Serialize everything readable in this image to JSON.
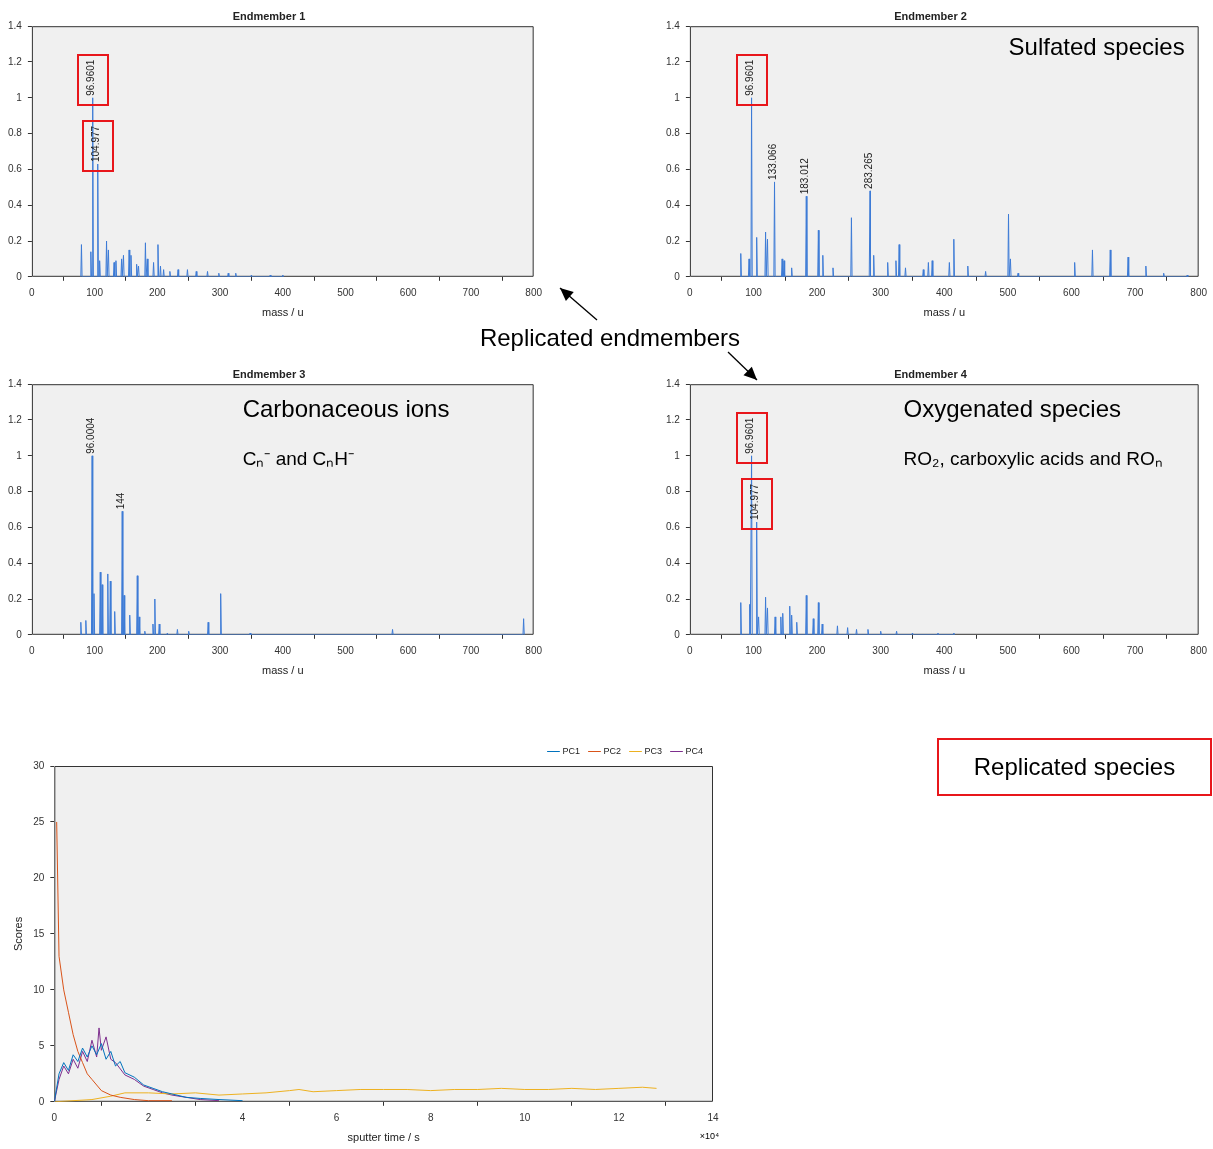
{
  "chart_data": [
    {
      "type": "line",
      "title": "Endmember 1",
      "xlabel": "mass / u",
      "color": "#3d7bd6",
      "grid": false,
      "marker": "none",
      "x": [
        78,
        79,
        80,
        93,
        94,
        95,
        96,
        96.9601,
        98,
        104,
        104.977,
        106,
        107,
        108,
        109,
        118,
        119,
        120,
        121,
        122,
        123,
        130,
        131,
        132,
        133,
        134,
        135,
        142,
        143,
        144,
        145,
        146,
        147,
        154,
        155,
        156,
        157,
        158,
        159,
        166,
        167,
        168,
        169,
        170,
        171,
        180,
        181,
        182,
        183,
        184,
        185,
        193,
        194,
        195,
        200,
        201,
        202,
        204,
        205,
        206,
        209,
        210,
        211,
        219,
        220,
        221,
        232,
        233,
        234,
        247,
        248,
        249,
        261,
        262,
        263,
        279,
        280,
        281,
        297,
        298,
        299,
        312,
        313,
        314,
        324,
        325,
        326,
        349,
        350,
        351,
        379,
        380,
        381,
        399,
        400,
        401
      ],
      "values": [
        0,
        0.18,
        0,
        0,
        0.14,
        0,
        0,
        1,
        0,
        0,
        0.63,
        0,
        0,
        0.09,
        0,
        0,
        0.2,
        0,
        0,
        0.15,
        0,
        0,
        0.08,
        0,
        0,
        0.09,
        0,
        0,
        0.1,
        0,
        0,
        0.12,
        0,
        0,
        0.15,
        0,
        0,
        0.12,
        0,
        0,
        0.07,
        0,
        0,
        0.06,
        0,
        0,
        0.19,
        0,
        0,
        0.1,
        0,
        0,
        0.08,
        0,
        0,
        0.18,
        0,
        0,
        0.06,
        0,
        0,
        0.04,
        0,
        0,
        0.03,
        0,
        0,
        0.04,
        0,
        0,
        0.04,
        0,
        0,
        0.03,
        0,
        0,
        0.03,
        0,
        0,
        0.02,
        0,
        0,
        0.02,
        0,
        0,
        0.02,
        0,
        0,
        0.01,
        0,
        0,
        0.01,
        0,
        0,
        0.01,
        0
      ],
      "xlim": [
        0,
        800
      ],
      "xticks": [
        0,
        100,
        200,
        300,
        400,
        500,
        600,
        700,
        800
      ],
      "ylim": [
        0,
        1.4
      ],
      "yticks": [
        0,
        0.2,
        0.4,
        0.6,
        0.8,
        1,
        1.2,
        1.4
      ],
      "annotations": [
        {
          "text": "96.9601",
          "x": 96.9601,
          "y": 1
        },
        {
          "text": "104.977",
          "x": 104.977,
          "y": 0.63
        }
      ]
    },
    {
      "type": "line",
      "title": "Endmember 2",
      "xlabel": "mass / u",
      "color": "#3d7bd6",
      "grid": false,
      "marker": "none",
      "x": [
        79,
        80,
        81,
        92,
        93,
        94,
        96,
        96.9601,
        98,
        104,
        105,
        106,
        118,
        119,
        120,
        121,
        122,
        123,
        132,
        133.066,
        134,
        144,
        145,
        146,
        147,
        148,
        149,
        159,
        160,
        161,
        182,
        183.012,
        184,
        201,
        202,
        203,
        208,
        209,
        210,
        224,
        225,
        226,
        253,
        254,
        255,
        282,
        283.265,
        284,
        288,
        289,
        290,
        310,
        311,
        312,
        323,
        324,
        325,
        328,
        329,
        330,
        338,
        339,
        340,
        366,
        367,
        368,
        374,
        375,
        376,
        380,
        381,
        382,
        407,
        408,
        409,
        414,
        415,
        416,
        436,
        437,
        438,
        464,
        465,
        466,
        500,
        501,
        502,
        503,
        504,
        505,
        515,
        516,
        517,
        604,
        605,
        606,
        632,
        633,
        634,
        660,
        661,
        662,
        688,
        689,
        690,
        716,
        717,
        718,
        744,
        745,
        746,
        781,
        782,
        783
      ],
      "values": [
        0,
        0.13,
        0,
        0,
        0.1,
        0,
        0,
        1,
        0,
        0,
        0.22,
        0,
        0,
        0.25,
        0,
        0,
        0.21,
        0,
        0,
        0.53,
        0,
        0,
        0.1,
        0,
        0,
        0.09,
        0,
        0,
        0.05,
        0,
        0,
        0.45,
        0,
        0,
        0.26,
        0,
        0,
        0.12,
        0,
        0,
        0.05,
        0,
        0,
        0.33,
        0,
        0,
        0.48,
        0,
        0,
        0.12,
        0,
        0,
        0.08,
        0,
        0,
        0.09,
        0,
        0,
        0.18,
        0,
        0,
        0.05,
        0,
        0,
        0.04,
        0,
        0,
        0.08,
        0,
        0,
        0.09,
        0,
        0,
        0.08,
        0,
        0,
        0.21,
        0,
        0,
        0.06,
        0,
        0,
        0.03,
        0,
        0,
        0.35,
        0,
        0,
        0.1,
        0,
        0,
        0.02,
        0,
        0,
        0.08,
        0,
        0,
        0.15,
        0,
        0,
        0.15,
        0,
        0,
        0.11,
        0,
        0,
        0.06,
        0,
        0,
        0.02,
        0,
        0,
        0.01,
        0
      ],
      "xlim": [
        0,
        800
      ],
      "xticks": [
        0,
        100,
        200,
        300,
        400,
        500,
        600,
        700,
        800
      ],
      "ylim": [
        0,
        1.4
      ],
      "yticks": [
        0,
        0.2,
        0.4,
        0.6,
        0.8,
        1,
        1.2,
        1.4
      ],
      "annotations": [
        "Sulfated species",
        {
          "text": "96.9601",
          "x": 96.9601,
          "y": 1
        },
        {
          "text": "133.066",
          "x": 133.066,
          "y": 0.53
        },
        {
          "text": "183.012",
          "x": 183.012,
          "y": 0.45
        },
        {
          "text": "283.265",
          "x": 283.265,
          "y": 0.48
        }
      ]
    },
    {
      "type": "line",
      "title": "Endmember 3",
      "xlabel": "mass / u",
      "color": "#3d7bd6",
      "grid": false,
      "marker": "none",
      "x": [
        77,
        78,
        79,
        85,
        86,
        87,
        95,
        96.0004,
        97,
        98,
        99,
        100,
        108,
        109,
        110,
        111,
        112,
        113,
        120,
        121,
        122,
        124,
        125,
        126,
        131,
        132,
        133,
        143,
        144,
        145,
        146,
        147,
        148,
        155,
        156,
        157,
        167,
        168,
        169,
        170,
        171,
        172,
        179,
        180,
        181,
        192,
        193,
        194,
        195,
        196,
        197,
        202,
        203,
        204,
        215,
        216,
        217,
        231,
        232,
        233,
        249,
        250,
        251,
        280,
        281,
        282,
        300,
        301,
        302,
        347,
        348,
        349,
        574,
        575,
        576,
        783,
        784,
        785
      ],
      "values": [
        0,
        0.07,
        0,
        0,
        0.08,
        0,
        0,
        1,
        0,
        0,
        0.23,
        0,
        0,
        0.35,
        0,
        0,
        0.28,
        0,
        0,
        0.34,
        0,
        0,
        0.3,
        0,
        0,
        0.13,
        0,
        0,
        0.69,
        0,
        0,
        0.22,
        0,
        0,
        0.11,
        0,
        0,
        0.33,
        0,
        0,
        0.1,
        0,
        0,
        0.02,
        0,
        0,
        0.06,
        0,
        0,
        0.2,
        0,
        0,
        0.06,
        0,
        0,
        0.01,
        0,
        0,
        0.03,
        0,
        0,
        0.02,
        0,
        0,
        0.07,
        0,
        0,
        0.23,
        0,
        0,
        0.01,
        0,
        0,
        0.03,
        0,
        0,
        0.09,
        0
      ],
      "xlim": [
        0,
        800
      ],
      "xticks": [
        0,
        100,
        200,
        300,
        400,
        500,
        600,
        700,
        800
      ],
      "ylim": [
        0,
        1.4
      ],
      "yticks": [
        0,
        0.2,
        0.4,
        0.6,
        0.8,
        1,
        1.2,
        1.4
      ],
      "annotations": [
        "Carbonaceous ions",
        "Cₙ⁻ and CₙH⁻",
        {
          "text": "96.0004",
          "x": 96.0004,
          "y": 1
        },
        {
          "text": "144",
          "x": 144,
          "y": 0.69
        }
      ]
    },
    {
      "type": "line",
      "title": "Endmember 4",
      "xlabel": "mass / u",
      "color": "#3d7bd6",
      "grid": false,
      "marker": "none",
      "x": [
        79,
        80,
        81,
        93,
        94,
        95,
        96,
        96.9601,
        98,
        104,
        104.977,
        106,
        107,
        108,
        109,
        118,
        119,
        120,
        121,
        122,
        123,
        133,
        134,
        135,
        142,
        143,
        144,
        145,
        146,
        147,
        156,
        157,
        158,
        159,
        160,
        161,
        167,
        168,
        169,
        182,
        183,
        184,
        193,
        194,
        195,
        201,
        202,
        203,
        207,
        208,
        209,
        231,
        232,
        233,
        247,
        248,
        249,
        261,
        262,
        263,
        279,
        280,
        281,
        299,
        300,
        301,
        324,
        325,
        326,
        349,
        350,
        351,
        389,
        390,
        391,
        414,
        415,
        416
      ],
      "values": [
        0,
        0.18,
        0,
        0,
        0.17,
        0,
        0,
        1,
        0,
        0,
        0.63,
        0,
        0,
        0.1,
        0,
        0,
        0.21,
        0,
        0,
        0.15,
        0,
        0,
        0.1,
        0,
        0,
        0.1,
        0,
        0,
        0.12,
        0,
        0,
        0.16,
        0,
        0,
        0.11,
        0,
        0,
        0.07,
        0,
        0,
        0.22,
        0,
        0,
        0.09,
        0,
        0,
        0.18,
        0,
        0,
        0.06,
        0,
        0,
        0.05,
        0,
        0,
        0.04,
        0,
        0,
        0.03,
        0,
        0,
        0.03,
        0,
        0,
        0.02,
        0,
        0,
        0.02,
        0,
        0,
        0.01,
        0,
        0,
        0.01,
        0,
        0,
        0.01,
        0
      ],
      "xlim": [
        0,
        800
      ],
      "xticks": [
        0,
        100,
        200,
        300,
        400,
        500,
        600,
        700,
        800
      ],
      "ylim": [
        0,
        1.4
      ],
      "yticks": [
        0,
        0.2,
        0.4,
        0.6,
        0.8,
        1,
        1.2,
        1.4
      ],
      "annotations": [
        "Oxygenated species",
        "RO₂, carboxylic acids and ROₙ",
        {
          "text": "96.9601",
          "x": 96.9601,
          "y": 1
        },
        {
          "text": "104.977",
          "x": 104.977,
          "y": 0.63
        }
      ]
    },
    {
      "type": "line",
      "xlabel": "sputter time / s",
      "ylabel": "Scores",
      "grid": false,
      "legend": "top right",
      "marker": "none",
      "xlim": [
        0,
        14
      ],
      "xticks": [
        0,
        2,
        4,
        6,
        8,
        10,
        12,
        14
      ],
      "ylim": [
        0,
        30
      ],
      "yticks": [
        0,
        5,
        10,
        15,
        20,
        25,
        30
      ],
      "annotations": [
        "×10⁴"
      ],
      "series": [
        {
          "name": "PC1",
          "color": "#0072bd",
          "x": [
            0,
            0.1,
            0.2,
            0.3,
            0.4,
            0.5,
            0.6,
            0.7,
            0.8,
            0.9,
            1.0,
            1.1,
            1.2,
            1.3,
            1.4,
            1.5,
            1.7,
            1.9,
            2.1,
            2.3,
            2.5,
            2.8,
            3.1,
            3.5,
            4
          ],
          "values": [
            0,
            2.5,
            3.5,
            2.8,
            4.2,
            3.6,
            4.8,
            4,
            5,
            4.2,
            5.2,
            3.8,
            4.5,
            3.2,
            3.6,
            2.6,
            2.2,
            1.5,
            1.2,
            0.9,
            0.7,
            0.4,
            0.3,
            0.2,
            0.1
          ]
        },
        {
          "name": "PC2",
          "color": "#d95319",
          "x": [
            0.05,
            0.1,
            0.2,
            0.3,
            0.4,
            0.5,
            0.6,
            0.7,
            0.8,
            1,
            1.2,
            1.4,
            1.7,
            2,
            2.5
          ],
          "values": [
            25,
            13,
            10,
            8,
            6,
            4.5,
            3.5,
            2.5,
            2,
            1,
            0.6,
            0.4,
            0.2,
            0.1,
            0.1
          ]
        },
        {
          "name": "PC3",
          "color": "#edb120",
          "x": [
            0,
            0.8,
            1.2,
            1.5,
            2,
            2.5,
            3,
            3.5,
            4,
            4.5,
            5,
            5.2,
            5.5,
            6,
            6.5,
            7,
            7.5,
            8,
            8.5,
            9,
            9.5,
            10,
            10.5,
            11,
            11.5,
            12,
            12.5,
            12.8
          ],
          "values": [
            0,
            0.2,
            0.5,
            0.8,
            0.8,
            0.7,
            0.8,
            0.6,
            0.7,
            0.8,
            1,
            1.1,
            0.9,
            1,
            1.1,
            1.1,
            1.1,
            1,
            1.1,
            1.1,
            1.2,
            1.1,
            1.1,
            1.2,
            1.1,
            1.2,
            1.3,
            1.2
          ]
        },
        {
          "name": "PC4",
          "color": "#7e2f8e",
          "x": [
            0,
            0.1,
            0.2,
            0.3,
            0.4,
            0.5,
            0.6,
            0.7,
            0.8,
            0.9,
            0.95,
            1.0,
            1.1,
            1.2,
            1.3,
            1.5,
            1.7,
            1.9,
            2.1,
            2.3,
            2.5,
            2.8,
            3.1,
            3.5
          ],
          "values": [
            0,
            2,
            3.2,
            2.5,
            3.8,
            3,
            4.5,
            3.6,
            5.5,
            4,
            6.6,
            4.6,
            5.8,
            3.8,
            3.5,
            2.4,
            2,
            1.4,
            1.1,
            0.8,
            0.6,
            0.4,
            0.2,
            0.1
          ]
        }
      ]
    },
    {
      "type": "other",
      "annotations": [
        "Replicated endmembers"
      ]
    },
    {
      "type": "other",
      "annotations": [
        "Replicated species"
      ]
    }
  ]
}
